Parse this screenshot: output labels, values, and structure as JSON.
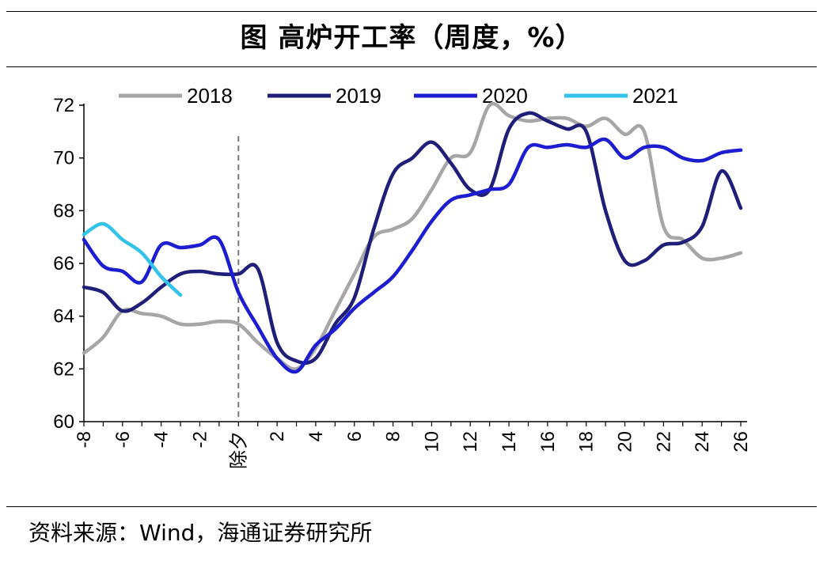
{
  "header": {
    "title": "图  高炉开工率（周度，%）"
  },
  "footer": {
    "source": "资料来源：Wind，海通证券研究所"
  },
  "chart_data": {
    "type": "line",
    "title": "图  高炉开工率（周度，%）",
    "xlabel": "",
    "ylabel": "",
    "x_range": [
      -8,
      26
    ],
    "ylim": [
      60,
      72
    ],
    "y_ticks": [
      60,
      62,
      64,
      66,
      68,
      70,
      72
    ],
    "x_tick_labels": [
      "-8",
      "-6",
      "-4",
      "-2",
      "除夕",
      "2",
      "4",
      "6",
      "8",
      "10",
      "12",
      "14",
      "16",
      "18",
      "20",
      "22",
      "24",
      "26"
    ],
    "x_tick_values": [
      -8,
      -6,
      -4,
      -2,
      0,
      2,
      4,
      6,
      8,
      10,
      12,
      14,
      16,
      18,
      20,
      22,
      24,
      26
    ],
    "reference_line": {
      "x": 0,
      "label": "除夕",
      "style": "dashed"
    },
    "grid": false,
    "legend_position": "top",
    "series": [
      {
        "name": "2018",
        "color": "#a6a6a6",
        "x": [
          -8,
          -7,
          -6,
          -5,
          -4,
          -3,
          -2,
          -1,
          0,
          1,
          2,
          3,
          4,
          5,
          6,
          7,
          8,
          9,
          10,
          11,
          12,
          13,
          14,
          15,
          16,
          17,
          18,
          19,
          20,
          21,
          22,
          23,
          24,
          25,
          26
        ],
        "y": [
          62.6,
          63.2,
          64.2,
          64.1,
          64.0,
          63.7,
          63.7,
          63.8,
          63.7,
          63.0,
          62.4,
          62.0,
          62.8,
          64.2,
          65.6,
          67.0,
          67.3,
          67.7,
          68.8,
          70.0,
          70.2,
          72.0,
          71.6,
          71.4,
          71.5,
          71.5,
          71.2,
          71.5,
          70.9,
          71.0,
          67.4,
          66.9,
          66.2,
          66.2,
          66.4
        ]
      },
      {
        "name": "2019",
        "color": "#1f1f7a",
        "x": [
          -8,
          -7,
          -6,
          -5,
          -4,
          -3,
          -2,
          -1,
          0,
          1,
          2,
          3,
          4,
          5,
          6,
          7,
          8,
          9,
          10,
          11,
          12,
          13,
          14,
          15,
          16,
          17,
          18,
          19,
          20,
          21,
          22,
          23,
          24,
          25,
          26
        ],
        "y": [
          65.1,
          64.9,
          64.2,
          64.5,
          65.1,
          65.6,
          65.7,
          65.6,
          65.6,
          65.8,
          63.0,
          62.3,
          62.4,
          63.7,
          64.7,
          67.3,
          69.4,
          70.0,
          70.6,
          69.8,
          68.8,
          68.8,
          71.1,
          71.7,
          71.4,
          71.1,
          71.0,
          68.0,
          66.1,
          66.1,
          66.7,
          66.8,
          67.4,
          69.5,
          68.1
        ]
      },
      {
        "name": "2020",
        "color": "#1c1cd0",
        "x": [
          -8,
          -7,
          -6,
          -5,
          -4,
          -3,
          -2,
          -1,
          0,
          1,
          2,
          3,
          4,
          5,
          6,
          7,
          8,
          9,
          10,
          11,
          12,
          13,
          14,
          15,
          16,
          17,
          18,
          19,
          20,
          21,
          22,
          23,
          24,
          25,
          26
        ],
        "y": [
          66.9,
          65.9,
          65.7,
          65.3,
          66.7,
          66.6,
          66.7,
          66.9,
          64.9,
          63.6,
          62.4,
          61.9,
          62.9,
          63.5,
          64.3,
          64.9,
          65.5,
          66.5,
          67.6,
          68.4,
          68.6,
          68.8,
          69.0,
          70.4,
          70.4,
          70.5,
          70.4,
          70.7,
          70.0,
          70.4,
          70.4,
          70.0,
          69.9,
          70.2,
          70.3
        ]
      },
      {
        "name": "2021",
        "color": "#33c3ea",
        "x": [
          -8,
          -7,
          -6,
          -5,
          -4,
          -3
        ],
        "y": [
          67.1,
          67.5,
          66.9,
          66.4,
          65.5,
          64.8
        ]
      }
    ]
  }
}
